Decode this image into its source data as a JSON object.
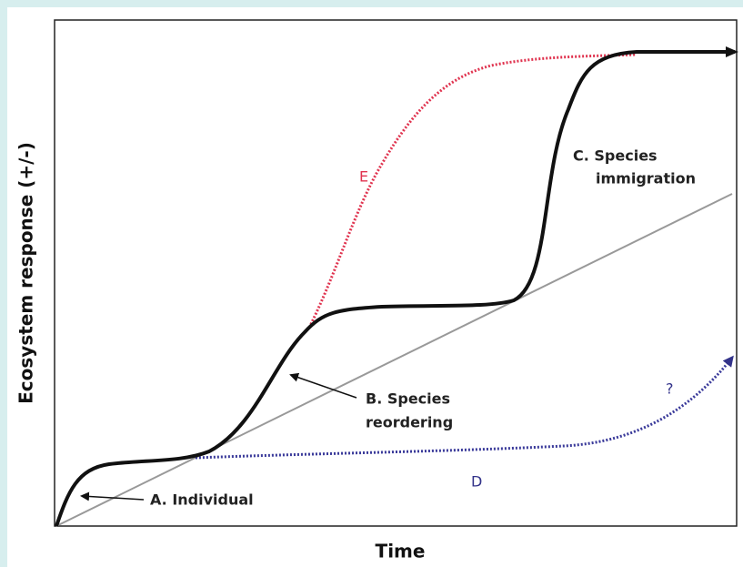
{
  "axes": {
    "x_label": "Time",
    "y_label": "Ecosystem response (+/-)"
  },
  "annotations": {
    "a": "A. Individual",
    "b": [
      "B. Species",
      "reordering"
    ],
    "c": [
      "C. Species",
      "immigration"
    ],
    "d": "D",
    "e": "E",
    "question": "?"
  }
}
